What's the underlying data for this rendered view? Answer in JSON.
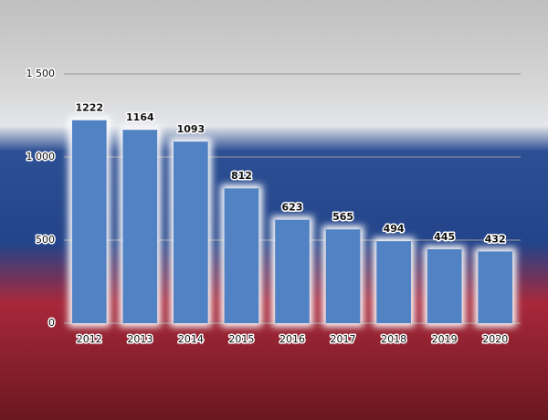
{
  "chart_data": {
    "type": "bar",
    "categories": [
      "2012",
      "2013",
      "2014",
      "2015",
      "2016",
      "2017",
      "2018",
      "2019",
      "2020"
    ],
    "values": [
      1222,
      1164,
      1093,
      812,
      623,
      565,
      494,
      445,
      432
    ],
    "color": "#5182c4",
    "ylim": [
      0,
      1500
    ],
    "yticks": [
      0,
      500,
      {
        "value": 1000,
        "label": "1 000"
      },
      {
        "value": 1500,
        "label": "1 500"
      }
    ],
    "grid": true
  }
}
